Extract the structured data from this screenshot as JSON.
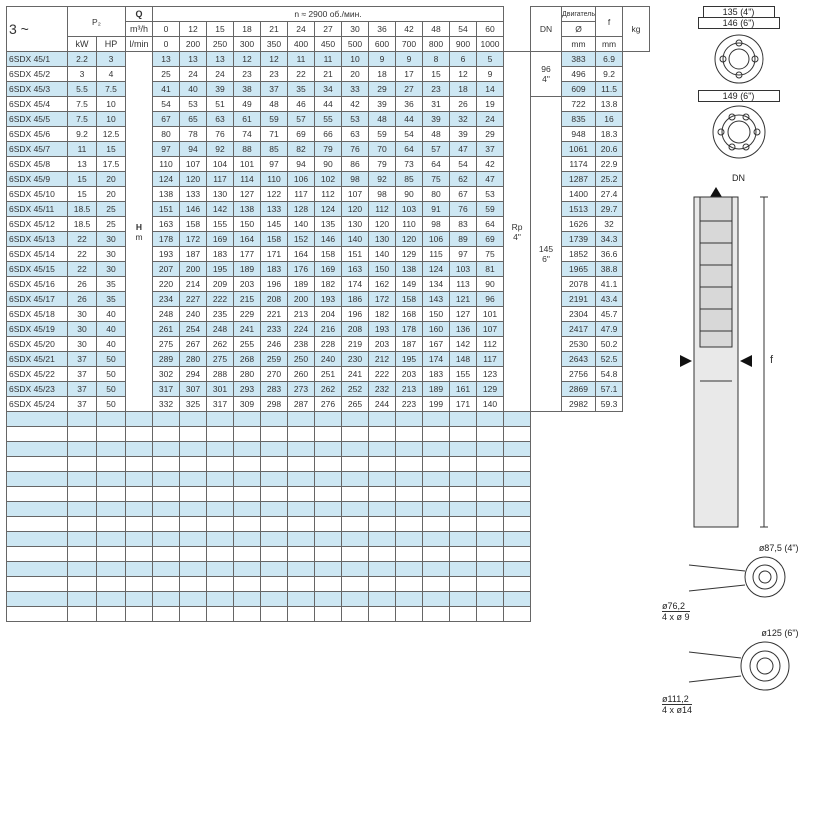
{
  "header": {
    "phase": "3 ~",
    "p2": "P₂",
    "p2_units_kw": "kW",
    "p2_units_hp": "HP",
    "Q": "Q",
    "q_unit1": "m³/h",
    "q_unit2": "l/min",
    "speed_line": "n ≈ 2900 об./мин.",
    "dn": "DN",
    "motor_title": "Двигатель",
    "motor_diam": "Ø",
    "motor_mm": "mm",
    "f": "f",
    "f_mm": "mm",
    "kg": "kg",
    "H": "H",
    "H_unit": "m",
    "q_tops": [
      "0",
      "12",
      "15",
      "18",
      "21",
      "24",
      "27",
      "30",
      "36",
      "42",
      "48",
      "54",
      "60"
    ],
    "q_bots": [
      "0",
      "200",
      "250",
      "300",
      "350",
      "400",
      "450",
      "500",
      "600",
      "700",
      "800",
      "900",
      "1000"
    ]
  },
  "dn_vals": {
    "top": "Rp",
    "bot": "4\""
  },
  "motor_groups": [
    {
      "rows": 3,
      "sizes": [
        "96",
        "4\""
      ]
    },
    {
      "rows": 21,
      "sizes": [
        "145",
        "6\""
      ]
    }
  ],
  "rows": [
    {
      "m": "6SDX 45/1",
      "kw": "2.2",
      "hp": "3",
      "h": [
        "13",
        "13",
        "13",
        "12",
        "12",
        "11",
        "11",
        "10",
        "9",
        "9",
        "8",
        "6",
        "5"
      ],
      "f": "383",
      "kg": "6.9"
    },
    {
      "m": "6SDX 45/2",
      "kw": "3",
      "hp": "4",
      "h": [
        "25",
        "24",
        "24",
        "23",
        "23",
        "22",
        "21",
        "20",
        "18",
        "17",
        "15",
        "12",
        "9"
      ],
      "f": "496",
      "kg": "9.2"
    },
    {
      "m": "6SDX 45/3",
      "kw": "5.5",
      "hp": "7.5",
      "h": [
        "41",
        "40",
        "39",
        "38",
        "37",
        "35",
        "34",
        "33",
        "29",
        "27",
        "23",
        "18",
        "14"
      ],
      "f": "609",
      "kg": "11.5"
    },
    {
      "m": "6SDX 45/4",
      "kw": "7.5",
      "hp": "10",
      "h": [
        "54",
        "53",
        "51",
        "49",
        "48",
        "46",
        "44",
        "42",
        "39",
        "36",
        "31",
        "26",
        "19"
      ],
      "f": "722",
      "kg": "13.8"
    },
    {
      "m": "6SDX 45/5",
      "kw": "7.5",
      "hp": "10",
      "h": [
        "67",
        "65",
        "63",
        "61",
        "59",
        "57",
        "55",
        "53",
        "48",
        "44",
        "39",
        "32",
        "24"
      ],
      "f": "835",
      "kg": "16"
    },
    {
      "m": "6SDX 45/6",
      "kw": "9.2",
      "hp": "12.5",
      "h": [
        "80",
        "78",
        "76",
        "74",
        "71",
        "69",
        "66",
        "63",
        "59",
        "54",
        "48",
        "39",
        "29"
      ],
      "f": "948",
      "kg": "18.3"
    },
    {
      "m": "6SDX 45/7",
      "kw": "11",
      "hp": "15",
      "h": [
        "97",
        "94",
        "92",
        "88",
        "85",
        "82",
        "79",
        "76",
        "70",
        "64",
        "57",
        "47",
        "37"
      ],
      "f": "1061",
      "kg": "20.6"
    },
    {
      "m": "6SDX 45/8",
      "kw": "13",
      "hp": "17.5",
      "h": [
        "110",
        "107",
        "104",
        "101",
        "97",
        "94",
        "90",
        "86",
        "79",
        "73",
        "64",
        "54",
        "42"
      ],
      "f": "1174",
      "kg": "22.9"
    },
    {
      "m": "6SDX 45/9",
      "kw": "15",
      "hp": "20",
      "h": [
        "124",
        "120",
        "117",
        "114",
        "110",
        "106",
        "102",
        "98",
        "92",
        "85",
        "75",
        "62",
        "47"
      ],
      "f": "1287",
      "kg": "25.2"
    },
    {
      "m": "6SDX 45/10",
      "kw": "15",
      "hp": "20",
      "h": [
        "138",
        "133",
        "130",
        "127",
        "122",
        "117",
        "112",
        "107",
        "98",
        "90",
        "80",
        "67",
        "53"
      ],
      "f": "1400",
      "kg": "27.4"
    },
    {
      "m": "6SDX 45/11",
      "kw": "18.5",
      "hp": "25",
      "h": [
        "151",
        "146",
        "142",
        "138",
        "133",
        "128",
        "124",
        "120",
        "112",
        "103",
        "91",
        "76",
        "59"
      ],
      "f": "1513",
      "kg": "29.7"
    },
    {
      "m": "6SDX 45/12",
      "kw": "18.5",
      "hp": "25",
      "h": [
        "163",
        "158",
        "155",
        "150",
        "145",
        "140",
        "135",
        "130",
        "120",
        "110",
        "98",
        "83",
        "64"
      ],
      "f": "1626",
      "kg": "32"
    },
    {
      "m": "6SDX 45/13",
      "kw": "22",
      "hp": "30",
      "h": [
        "178",
        "172",
        "169",
        "164",
        "158",
        "152",
        "146",
        "140",
        "130",
        "120",
        "106",
        "89",
        "69"
      ],
      "f": "1739",
      "kg": "34.3"
    },
    {
      "m": "6SDX 45/14",
      "kw": "22",
      "hp": "30",
      "h": [
        "193",
        "187",
        "183",
        "177",
        "171",
        "164",
        "158",
        "151",
        "140",
        "129",
        "115",
        "97",
        "75"
      ],
      "f": "1852",
      "kg": "36.6"
    },
    {
      "m": "6SDX 45/15",
      "kw": "22",
      "hp": "30",
      "h": [
        "207",
        "200",
        "195",
        "189",
        "183",
        "176",
        "169",
        "163",
        "150",
        "138",
        "124",
        "103",
        "81"
      ],
      "f": "1965",
      "kg": "38.8"
    },
    {
      "m": "6SDX 45/16",
      "kw": "26",
      "hp": "35",
      "h": [
        "220",
        "214",
        "209",
        "203",
        "196",
        "189",
        "182",
        "174",
        "162",
        "149",
        "134",
        "113",
        "90"
      ],
      "f": "2078",
      "kg": "41.1"
    },
    {
      "m": "6SDX 45/17",
      "kw": "26",
      "hp": "35",
      "h": [
        "234",
        "227",
        "222",
        "215",
        "208",
        "200",
        "193",
        "186",
        "172",
        "158",
        "143",
        "121",
        "96"
      ],
      "f": "2191",
      "kg": "43.4"
    },
    {
      "m": "6SDX 45/18",
      "kw": "30",
      "hp": "40",
      "h": [
        "248",
        "240",
        "235",
        "229",
        "221",
        "213",
        "204",
        "196",
        "182",
        "168",
        "150",
        "127",
        "101"
      ],
      "f": "2304",
      "kg": "45.7"
    },
    {
      "m": "6SDX 45/19",
      "kw": "30",
      "hp": "40",
      "h": [
        "261",
        "254",
        "248",
        "241",
        "233",
        "224",
        "216",
        "208",
        "193",
        "178",
        "160",
        "136",
        "107"
      ],
      "f": "2417",
      "kg": "47.9"
    },
    {
      "m": "6SDX 45/20",
      "kw": "30",
      "hp": "40",
      "h": [
        "275",
        "267",
        "262",
        "255",
        "246",
        "238",
        "228",
        "219",
        "203",
        "187",
        "167",
        "142",
        "112"
      ],
      "f": "2530",
      "kg": "50.2"
    },
    {
      "m": "6SDX 45/21",
      "kw": "37",
      "hp": "50",
      "h": [
        "289",
        "280",
        "275",
        "268",
        "259",
        "250",
        "240",
        "230",
        "212",
        "195",
        "174",
        "148",
        "117"
      ],
      "f": "2643",
      "kg": "52.5"
    },
    {
      "m": "6SDX 45/22",
      "kw": "37",
      "hp": "50",
      "h": [
        "302",
        "294",
        "288",
        "280",
        "270",
        "260",
        "251",
        "241",
        "222",
        "203",
        "183",
        "155",
        "123"
      ],
      "f": "2756",
      "kg": "54.8"
    },
    {
      "m": "6SDX 45/23",
      "kw": "37",
      "hp": "50",
      "h": [
        "317",
        "307",
        "301",
        "293",
        "283",
        "273",
        "262",
        "252",
        "232",
        "213",
        "189",
        "161",
        "129"
      ],
      "f": "2869",
      "kg": "57.1"
    },
    {
      "m": "6SDX 45/24",
      "kw": "37",
      "hp": "50",
      "h": [
        "332",
        "325",
        "317",
        "309",
        "298",
        "287",
        "276",
        "265",
        "244",
        "223",
        "199",
        "171",
        "140"
      ],
      "f": "2982",
      "kg": "59.3"
    }
  ],
  "empty_rows": 14,
  "colors": {
    "stripe": "#cde7f3",
    "border": "#666666"
  },
  "diagram": {
    "dim_top1": "135 (4\")",
    "dim_top2": "146 (6\")",
    "dim_149": "149 (6\")",
    "dn_label": "DN",
    "f_label": "f",
    "bot4_dim": "ø87,5 (4\")",
    "bot4_sub1": "ø76,2",
    "bot4_sub2": "4 x ø 9",
    "bot6_dim": "ø125 (6\")",
    "bot6_sub1": "ø111,2",
    "bot6_sub2": "4 x ø14"
  }
}
